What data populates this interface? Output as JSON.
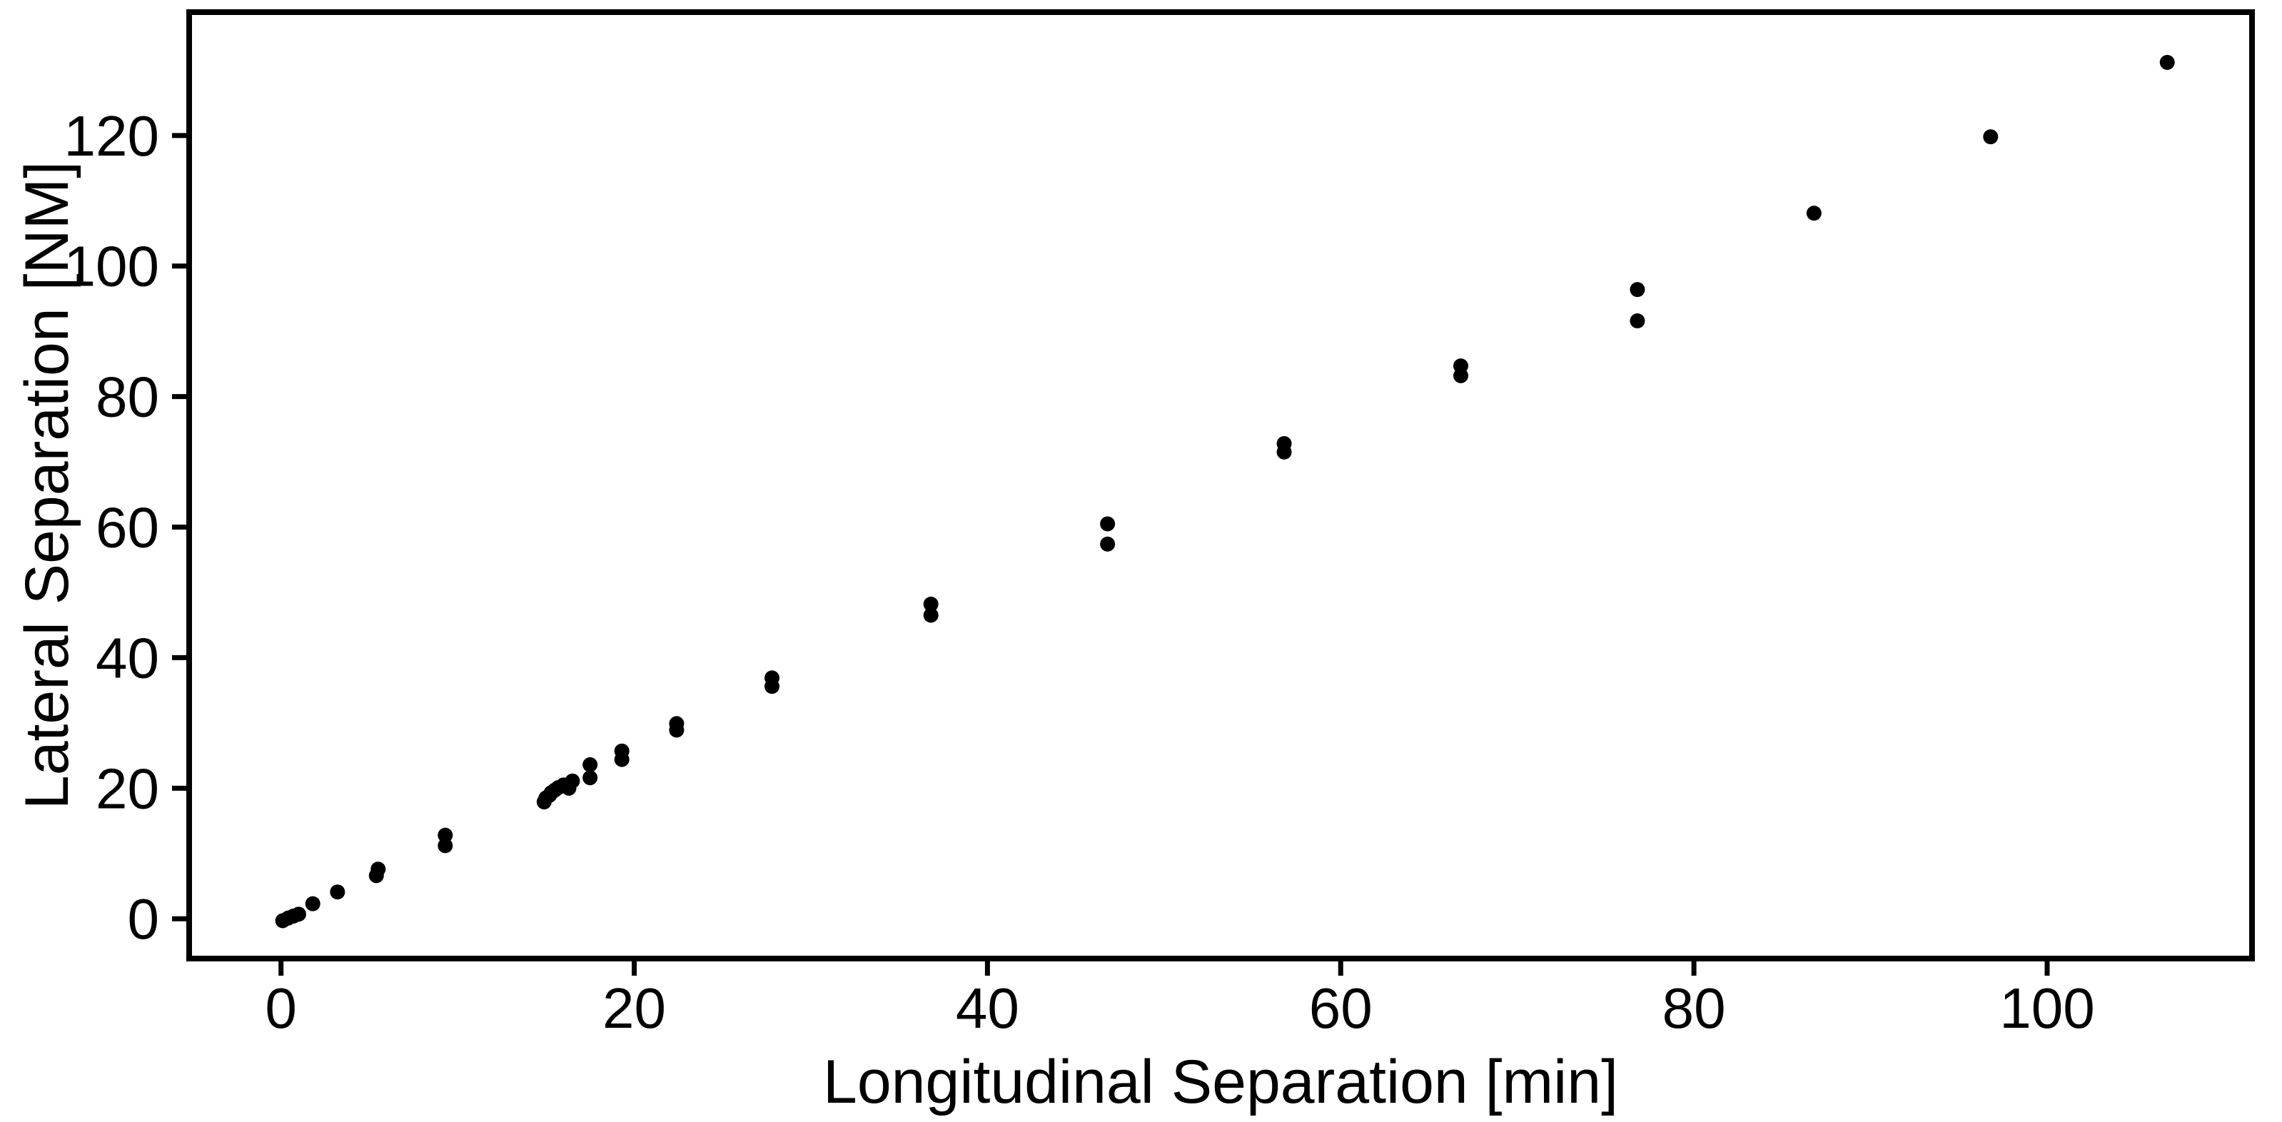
{
  "chart_data": {
    "type": "scatter",
    "title": "",
    "xlabel": "Longitudinal Separation [min]",
    "ylabel": "Lateral Separation [NM]",
    "xticks": [
      0,
      20,
      40,
      60,
      80,
      100
    ],
    "yticks": [
      0,
      20,
      40,
      60,
      80,
      100,
      120
    ],
    "xlim": [
      -5.2,
      111.6
    ],
    "ylim": [
      -6.1,
      138.9
    ],
    "grid": false,
    "legend": "none",
    "marker": {
      "shape": "circle",
      "color": "#000000",
      "radius_px": 10.5
    },
    "axis_color": "#000000",
    "background_color": "#ffffff",
    "points": [
      [
        0.1,
        -0.3
      ],
      [
        0.4,
        0.1
      ],
      [
        0.7,
        0.4
      ],
      [
        1.0,
        0.7
      ],
      [
        1.8,
        2.3
      ],
      [
        3.2,
        4.1
      ],
      [
        5.4,
        6.6
      ],
      [
        5.5,
        7.6
      ],
      [
        9.3,
        11.2
      ],
      [
        9.3,
        12.8
      ],
      [
        14.9,
        17.9
      ],
      [
        15.0,
        18.5
      ],
      [
        15.2,
        18.9
      ],
      [
        15.3,
        19.3
      ],
      [
        15.5,
        19.7
      ],
      [
        15.7,
        20.1
      ],
      [
        16.0,
        20.5
      ],
      [
        16.3,
        20.0
      ],
      [
        16.5,
        21.1
      ],
      [
        17.5,
        21.6
      ],
      [
        17.5,
        23.6
      ],
      [
        19.3,
        24.4
      ],
      [
        19.3,
        25.7
      ],
      [
        22.4,
        28.9
      ],
      [
        22.4,
        29.9
      ],
      [
        27.8,
        35.6
      ],
      [
        27.8,
        36.9
      ],
      [
        36.8,
        46.5
      ],
      [
        36.8,
        48.2
      ],
      [
        46.8,
        57.4
      ],
      [
        46.8,
        60.5
      ],
      [
        56.8,
        71.5
      ],
      [
        56.8,
        72.8
      ],
      [
        66.8,
        83.2
      ],
      [
        66.8,
        84.7
      ],
      [
        76.8,
        91.6
      ],
      [
        76.8,
        96.4
      ],
      [
        86.8,
        108.1
      ],
      [
        96.8,
        119.8
      ],
      [
        106.8,
        131.2
      ]
    ]
  }
}
